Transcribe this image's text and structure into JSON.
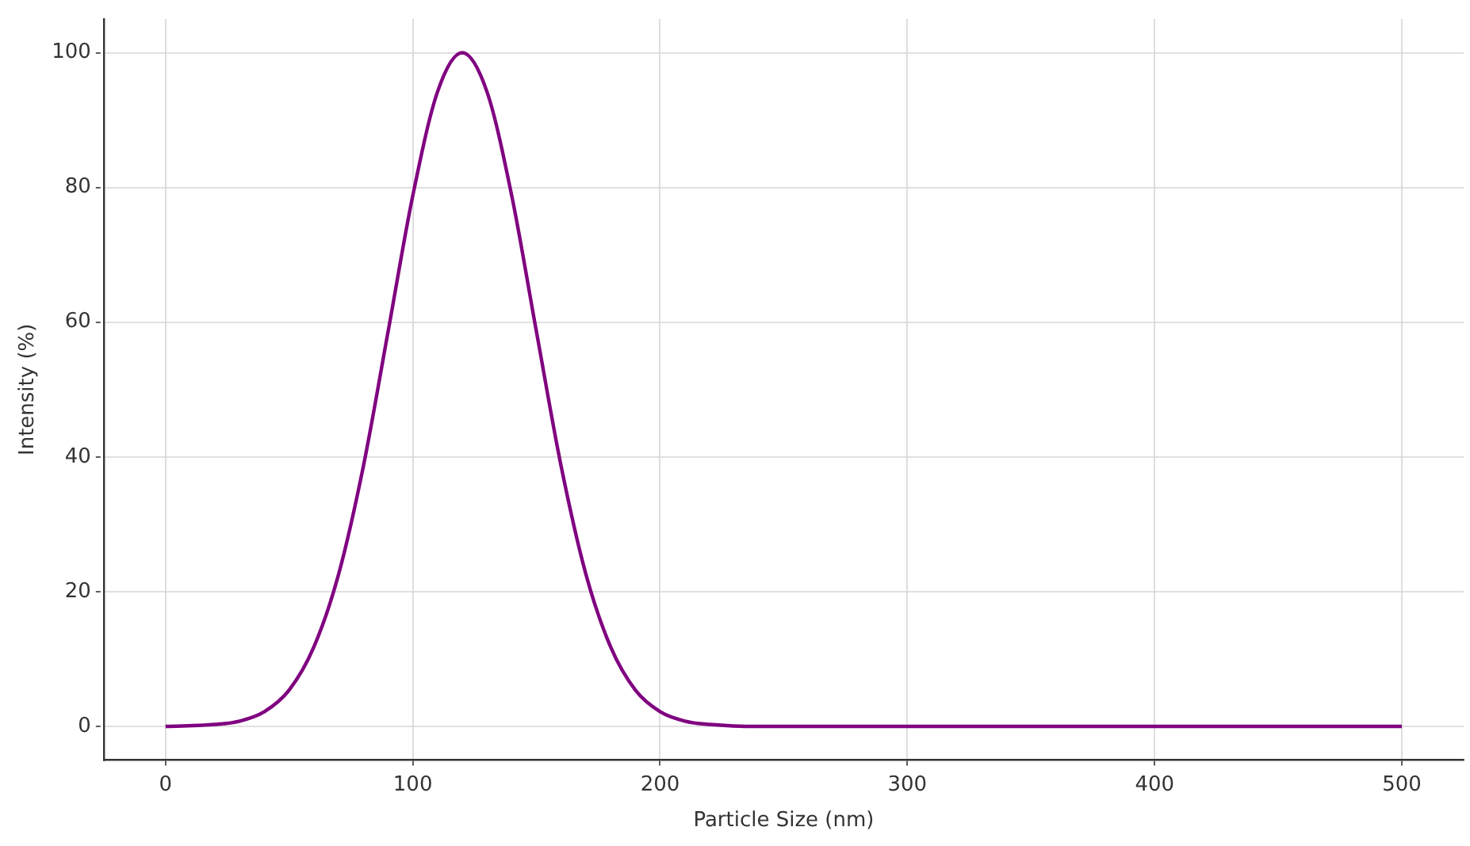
{
  "chart_data": {
    "type": "line",
    "xlabel": "Particle Size (nm)",
    "ylabel": "Intensity (%)",
    "xlim": [
      -25,
      525
    ],
    "xticks": [
      0,
      100,
      200,
      300,
      400,
      500
    ],
    "ylim": [
      -5,
      105
    ],
    "yticks": [
      0,
      20,
      40,
      60,
      80,
      100
    ],
    "grid": true,
    "legend": false,
    "marker": "none",
    "line_style": "solid",
    "series": [
      {
        "color": "#800080",
        "x": [
          0,
          20,
          30,
          40,
          50,
          60,
          70,
          80,
          90,
          100,
          110,
          120,
          130,
          140,
          150,
          160,
          170,
          180,
          190,
          200,
          210,
          220,
          240,
          300,
          400,
          500
        ],
        "values": [
          0,
          0.3,
          0.8,
          2.2,
          5.4,
          11.8,
          22.6,
          38.6,
          58.6,
          78.8,
          94.2,
          100,
          94.2,
          78.8,
          58.6,
          38.6,
          22.6,
          11.8,
          5.4,
          2.2,
          0.8,
          0.3,
          0,
          0,
          0,
          0
        ]
      }
    ]
  }
}
